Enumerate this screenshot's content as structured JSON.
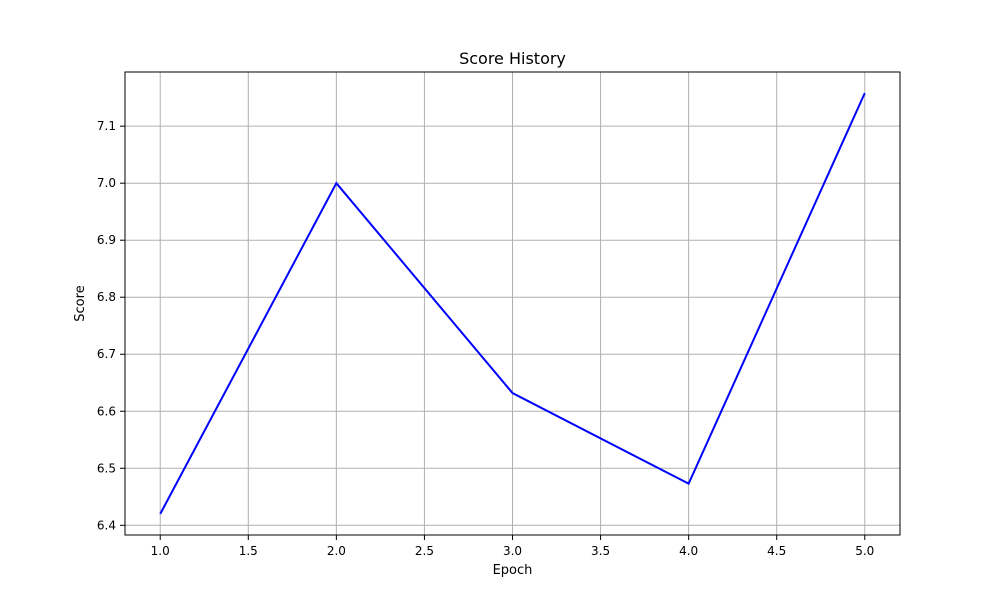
{
  "chart_data": {
    "type": "line",
    "title": "Score History",
    "xlabel": "Epoch",
    "ylabel": "Score",
    "xlim": [
      0.8,
      5.2
    ],
    "ylim": [
      6.383,
      7.195
    ],
    "x_ticks": [
      1.0,
      1.5,
      2.0,
      2.5,
      3.0,
      3.5,
      4.0,
      4.5,
      5.0
    ],
    "x_tick_labels": [
      "1.0",
      "1.5",
      "2.0",
      "2.5",
      "3.0",
      "3.5",
      "4.0",
      "4.5",
      "5.0"
    ],
    "y_ticks": [
      6.4,
      6.5,
      6.6,
      6.7,
      6.8,
      6.9,
      7.0,
      7.1
    ],
    "y_tick_labels": [
      "6.4",
      "6.5",
      "6.6",
      "6.7",
      "6.8",
      "6.9",
      "7.0",
      "7.1"
    ],
    "grid": true,
    "series": [
      {
        "color": "#0000ff",
        "x": [
          1,
          2,
          3,
          4,
          5
        ],
        "values": [
          6.42,
          7.0,
          6.632,
          6.473,
          7.158
        ]
      }
    ]
  }
}
